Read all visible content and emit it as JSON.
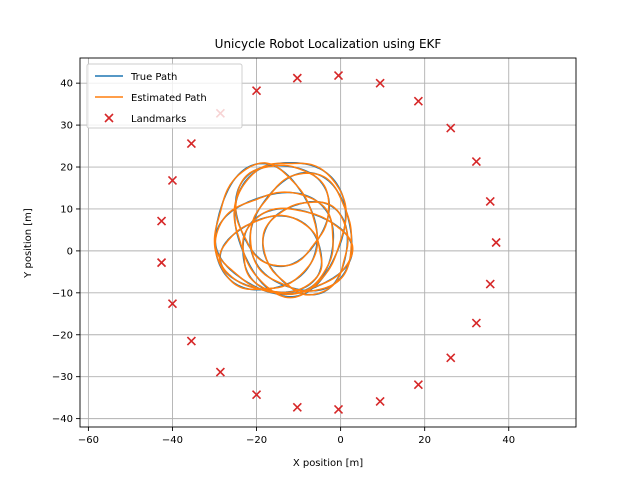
{
  "chart_data": {
    "type": "line",
    "title": "Unicycle Robot Localization using EKF",
    "xlabel": "X position [m]",
    "ylabel": "Y position [m]",
    "xlim": [
      -62,
      56
    ],
    "ylim": [
      -42,
      46
    ],
    "xticks": [
      -60,
      -40,
      -20,
      0,
      20,
      40
    ],
    "yticks": [
      -40,
      -30,
      -20,
      -10,
      0,
      10,
      20,
      30,
      40
    ],
    "grid": true,
    "legend_position": "top-left",
    "colors": {
      "true_path": "#1f77b4",
      "estimated_path": "#ff7f0e",
      "landmarks": "#d62728"
    },
    "legend": [
      {
        "label": "True Path",
        "kind": "line",
        "color": "#1f77b4"
      },
      {
        "label": "Estimated Path",
        "kind": "line",
        "color": "#ff7f0e"
      },
      {
        "label": "Landmarks",
        "kind": "marker",
        "color": "#d62728"
      }
    ],
    "trajectory_loops": [
      {
        "cx": -12,
        "cy": 6,
        "rx": 13,
        "ry": 16,
        "phase": 0.0
      },
      {
        "cx": -15,
        "cy": 2,
        "rx": 14,
        "ry": 12,
        "phase": 0.6
      },
      {
        "cx": -9,
        "cy": 4,
        "rx": 12,
        "ry": 14,
        "phase": 1.2
      },
      {
        "cx": -18,
        "cy": 5,
        "rx": 12,
        "ry": 15,
        "phase": 1.8
      },
      {
        "cx": -11,
        "cy": 0,
        "rx": 13,
        "ry": 10,
        "phase": 2.4
      },
      {
        "cx": -14,
        "cy": 9,
        "rx": 11,
        "ry": 12,
        "phase": 3.0
      },
      {
        "cx": -8,
        "cy": 1,
        "rx": 10,
        "ry": 11,
        "phase": 3.6
      },
      {
        "cx": -16,
        "cy": -1,
        "rx": 12,
        "ry": 9,
        "phase": 4.2
      }
    ],
    "landmarks": [
      {
        "x": 37,
        "y": 2
      },
      {
        "x": 35.6,
        "y": 11.8
      },
      {
        "x": 32.3,
        "y": 21.3
      },
      {
        "x": 26.2,
        "y": 29.3
      },
      {
        "x": 18.5,
        "y": 35.7
      },
      {
        "x": 9.4,
        "y": 40
      },
      {
        "x": -0.5,
        "y": 41.8
      },
      {
        "x": -10.3,
        "y": 41.2
      },
      {
        "x": -20,
        "y": 38.2
      },
      {
        "x": -28.6,
        "y": 32.8
      },
      {
        "x": -35.5,
        "y": 25.6
      },
      {
        "x": -40,
        "y": 16.8
      },
      {
        "x": -42.6,
        "y": 7.1
      },
      {
        "x": -42.6,
        "y": -2.8
      },
      {
        "x": -40,
        "y": -12.6
      },
      {
        "x": -35.5,
        "y": -21.5
      },
      {
        "x": -28.6,
        "y": -28.9
      },
      {
        "x": -20,
        "y": -34.3
      },
      {
        "x": -10.3,
        "y": -37.3
      },
      {
        "x": -0.5,
        "y": -37.8
      },
      {
        "x": 9.4,
        "y": -35.9
      },
      {
        "x": 18.5,
        "y": -31.9
      },
      {
        "x": 26.2,
        "y": -25.5
      },
      {
        "x": 32.3,
        "y": -17.2
      },
      {
        "x": 35.6,
        "y": -7.9
      }
    ]
  }
}
